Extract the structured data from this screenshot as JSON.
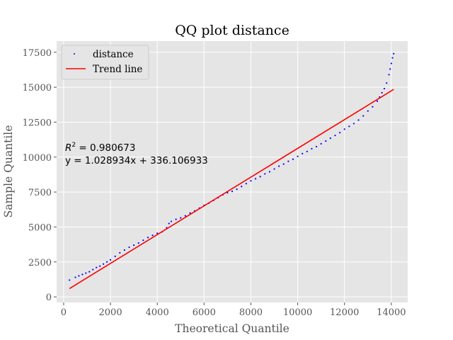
{
  "colors": {
    "plot_background": "#e5e5e5",
    "grid": "#ffffff",
    "points": "#0000ff",
    "trend": "#ff0000",
    "text": "#555555"
  },
  "chart_data": {
    "type": "scatter",
    "title": "QQ plot distance",
    "xlabel": "Theoretical Quantile",
    "ylabel": "Sample Quantile",
    "xlim": [
      -300,
      14700
    ],
    "ylim": [
      -400,
      18300
    ],
    "xticks": [
      0,
      2000,
      4000,
      6000,
      8000,
      10000,
      12000,
      14000
    ],
    "yticks": [
      0,
      2500,
      5000,
      7500,
      10000,
      12500,
      15000,
      17500
    ],
    "xtick_labels": [
      "0",
      "2000",
      "4000",
      "6000",
      "8000",
      "10000",
      "12000",
      "14000"
    ],
    "ytick_labels": [
      "0",
      "2500",
      "5000",
      "7500",
      "10000",
      "12500",
      "15000",
      "17500"
    ],
    "grid": true,
    "legend": {
      "placement": "upper-left",
      "entries": [
        "distance",
        "Trend line"
      ]
    },
    "series": [
      {
        "name": "distance",
        "kind": "points",
        "x": [
          250,
          500,
          650,
          800,
          950,
          1100,
          1250,
          1400,
          1550,
          1700,
          1850,
          2000,
          2200,
          2400,
          2600,
          2800,
          3000,
          3200,
          3400,
          3600,
          3800,
          4000,
          4200,
          4400,
          4500,
          4600,
          4800,
          5000,
          5200,
          5400,
          5600,
          5800,
          6000,
          6200,
          6400,
          6600,
          6800,
          7000,
          7200,
          7400,
          7600,
          7800,
          8000,
          8200,
          8400,
          8600,
          8800,
          9000,
          9200,
          9400,
          9600,
          9800,
          10000,
          10200,
          10400,
          10600,
          10800,
          11000,
          11200,
          11400,
          11600,
          11800,
          12000,
          12200,
          12400,
          12600,
          12800,
          13000,
          13200,
          13400,
          13500,
          13600,
          13700,
          13800,
          13900,
          13950,
          14000,
          14050,
          14100
        ],
        "y": [
          1200,
          1400,
          1500,
          1600,
          1700,
          1800,
          1950,
          2100,
          2200,
          2350,
          2500,
          2650,
          2900,
          3150,
          3350,
          3550,
          3700,
          3850,
          4050,
          4250,
          4400,
          4550,
          4650,
          4950,
          5250,
          5400,
          5550,
          5650,
          5800,
          6000,
          6150,
          6350,
          6550,
          6700,
          6900,
          7100,
          7300,
          7450,
          7550,
          7700,
          7900,
          8100,
          8300,
          8450,
          8600,
          8800,
          8950,
          9150,
          9350,
          9500,
          9700,
          9850,
          10050,
          10250,
          10400,
          10600,
          10750,
          10950,
          11150,
          11350,
          11550,
          11750,
          12000,
          12200,
          12400,
          12650,
          12950,
          13300,
          13600,
          14000,
          14300,
          14600,
          14900,
          15300,
          15900,
          16300,
          16700,
          17100,
          17400
        ]
      },
      {
        "name": "Trend line",
        "kind": "line",
        "x": [
          250,
          14100
        ],
        "y": [
          593,
          14844
        ]
      }
    ],
    "annotations": [
      {
        "id": "r2",
        "label": "R",
        "sup": "2",
        "value": " = 0.980673"
      },
      {
        "id": "equation",
        "text": "y = 1.028934x + 336.106933"
      }
    ]
  }
}
